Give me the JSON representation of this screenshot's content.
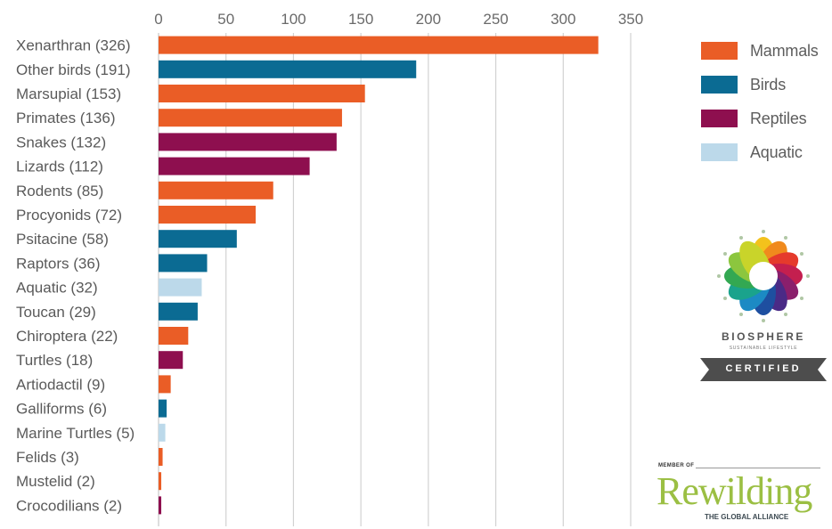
{
  "chart_data": {
    "type": "bar",
    "orientation": "horizontal",
    "categories": [
      "Xenarthran (326)",
      "Other birds (191)",
      "Marsupial (153)",
      "Primates (136)",
      "Snakes (132)",
      "Lizards (112)",
      "Rodents (85)",
      "Procyonids (72)",
      "Psitacine (58)",
      "Raptors (36)",
      "Aquatic (32)",
      "Toucan (29)",
      "Chiroptera (22)",
      "Turtles (18)",
      "Artiodactil (9)",
      "Galliforms (6)",
      "Marine Turtles (5)",
      "Felids (3)",
      "Mustelid (2)",
      "Crocodilians (2)"
    ],
    "values": [
      326,
      191,
      153,
      136,
      132,
      112,
      85,
      72,
      58,
      36,
      32,
      29,
      22,
      18,
      9,
      6,
      5,
      3,
      2,
      2
    ],
    "groups": [
      "Mammals",
      "Birds",
      "Mammals",
      "Mammals",
      "Reptiles",
      "Reptiles",
      "Mammals",
      "Mammals",
      "Birds",
      "Birds",
      "Aquatic",
      "Birds",
      "Mammals",
      "Reptiles",
      "Mammals",
      "Birds",
      "Aquatic",
      "Mammals",
      "Mammals",
      "Reptiles"
    ],
    "xticks": [
      "0",
      "50",
      "100",
      "150",
      "200",
      "250",
      "300",
      "350"
    ],
    "xlim": [
      0,
      350
    ],
    "axis_position": "top",
    "grid": true,
    "legend_position": "top-right",
    "legend": [
      {
        "name": "Mammals",
        "color": "#ea5d26"
      },
      {
        "name": "Birds",
        "color": "#0b6b93"
      },
      {
        "name": "Reptiles",
        "color": "#8e0f4f"
      },
      {
        "name": "Aquatic",
        "color": "#bcd9ea"
      }
    ]
  },
  "logos": {
    "biosphere": {
      "name": "BIOSPHERE",
      "subtitle": "SUSTAINABLE LIFESTYLE",
      "badge": "CERTIFIED"
    },
    "rewilding": {
      "member_of": "MEMBER OF",
      "wordmark": "Rewilding",
      "tagline": "THE GLOBAL ALLIANCE"
    }
  }
}
